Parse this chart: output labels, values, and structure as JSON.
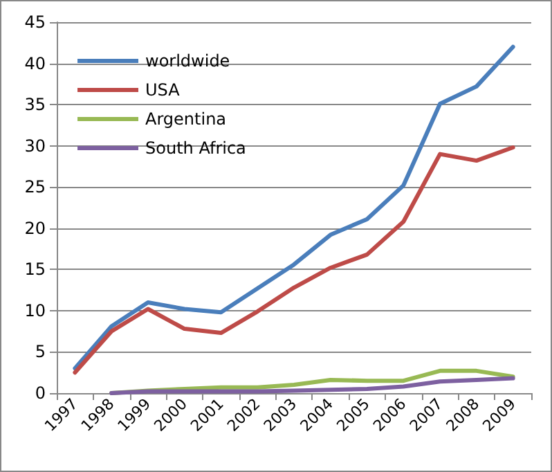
{
  "chart_data": {
    "type": "line",
    "categories": [
      "1997",
      "1998",
      "1999",
      "2000",
      "2001",
      "2002",
      "2003",
      "2004",
      "2005",
      "2006",
      "2007",
      "2008",
      "2009"
    ],
    "series": [
      {
        "name": "worldwide",
        "color": "#4a7ebb",
        "values": [
          3.0,
          8.1,
          11.0,
          10.2,
          9.8,
          12.7,
          15.6,
          19.2,
          21.1,
          25.2,
          35.1,
          37.2,
          42.0
        ]
      },
      {
        "name": "USA",
        "color": "#be4b48",
        "values": [
          2.5,
          7.5,
          10.2,
          7.8,
          7.3,
          9.9,
          12.8,
          15.2,
          16.8,
          20.8,
          29.0,
          28.2,
          29.8
        ]
      },
      {
        "name": "Argentina",
        "color": "#98b954",
        "values": [
          null,
          0,
          0.3,
          0.5,
          0.7,
          0.7,
          1.0,
          1.6,
          1.5,
          1.5,
          2.7,
          2.7,
          2.0
        ]
      },
      {
        "name": "South Africa",
        "color": "#7d60a0",
        "values": [
          null,
          0,
          0.2,
          0.2,
          0.2,
          0.2,
          0.3,
          0.4,
          0.5,
          0.8,
          1.4,
          1.6,
          1.8
        ]
      }
    ],
    "ylim": [
      0,
      45
    ],
    "yticks": [
      0,
      5,
      10,
      15,
      20,
      25,
      30,
      35,
      40,
      45
    ],
    "grid": "y",
    "legend": "top left",
    "marker": "none",
    "line_style": "solid"
  }
}
